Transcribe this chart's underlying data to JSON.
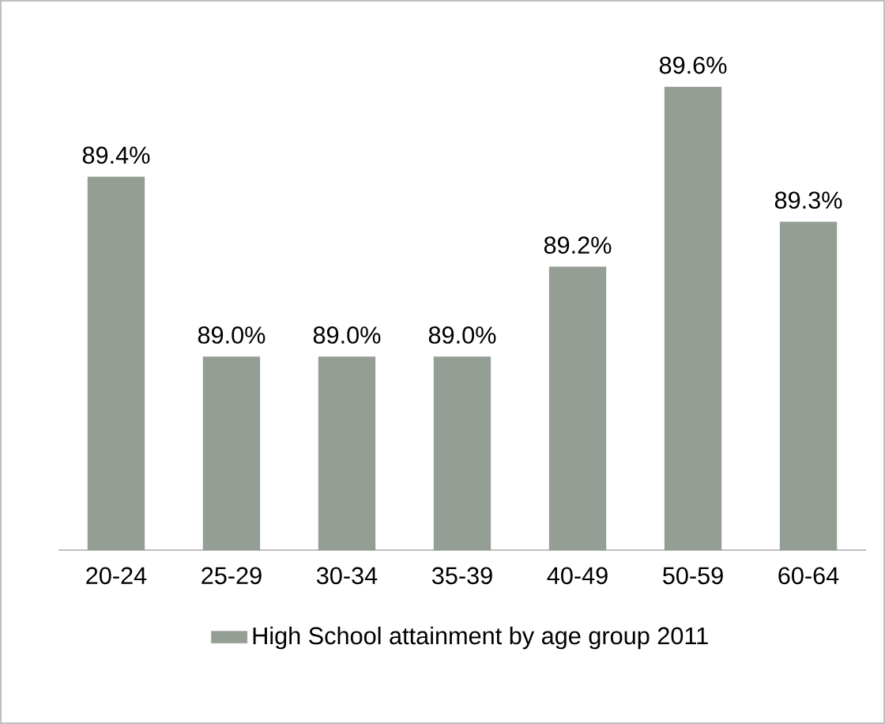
{
  "chart_data": {
    "type": "bar",
    "categories": [
      "20-24",
      "25-29",
      "30-34",
      "35-39",
      "40-49",
      "50-59",
      "60-64"
    ],
    "series": [
      {
        "name": "High School attainment by age group 2011",
        "color": "#949e94",
        "values": [
          89.4,
          89.0,
          89.0,
          89.0,
          89.2,
          89.6,
          89.3
        ],
        "value_labels": [
          "89.4%",
          "89.0%",
          "89.0%",
          "89.0%",
          "89.2%",
          "89.6%",
          "89.3%"
        ]
      }
    ],
    "ylim": [
      88.57,
      89.6
    ],
    "legend": "bottom"
  }
}
